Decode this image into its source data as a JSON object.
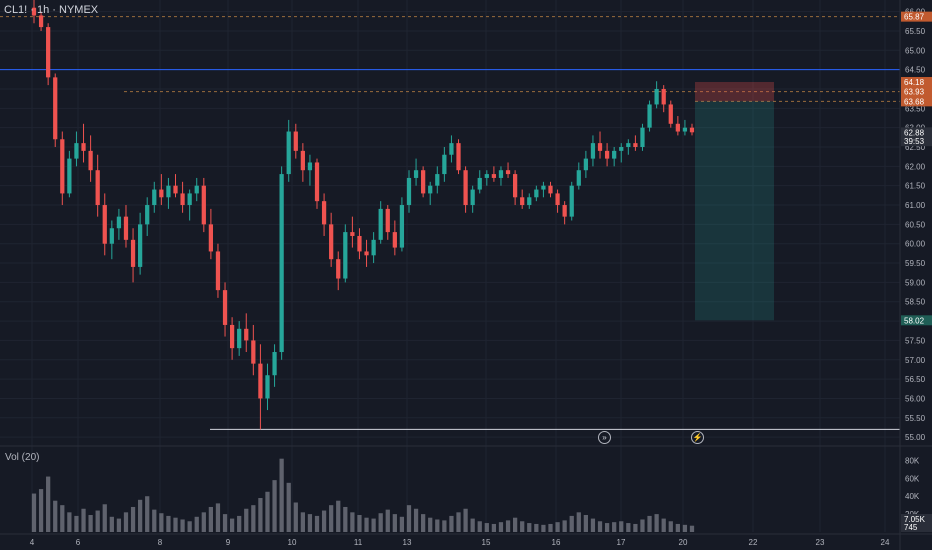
{
  "header": {
    "symbol_line": "CL1! · 1h · NYMEX"
  },
  "volume_panel": {
    "title": "Vol (20)"
  },
  "colors": {
    "background": "#161a25",
    "up": "#26a69a",
    "down": "#ef5350",
    "grid": "#1f2431",
    "text": "#b2b5be",
    "blue_line": "#2962ff"
  },
  "chart_data": {
    "type": "candlestick",
    "title": "",
    "y_ticks": [
      "66.00",
      "65.50",
      "65.00",
      "64.50",
      "64.00",
      "63.50",
      "63.00",
      "62.50",
      "62.00",
      "61.50",
      "61.00",
      "60.50",
      "60.00",
      "59.50",
      "59.00",
      "58.50",
      "58.00",
      "57.50",
      "57.00",
      "56.50",
      "56.00",
      "55.50",
      "55.00"
    ],
    "ylim": [
      54.9,
      66.3
    ],
    "x_ticks": [
      "4",
      "6",
      "8",
      "9",
      "10",
      "11",
      "13",
      "15",
      "16",
      "17",
      "20",
      "22",
      "23",
      "24"
    ],
    "price_labels": [
      {
        "value": 65.87,
        "text": "65.87",
        "color": "#c15a2f"
      },
      {
        "value": 64.18,
        "text": "64.18",
        "color": "#c15a2f"
      },
      {
        "value": 63.93,
        "text": "63.93",
        "color": "#c15a2f"
      },
      {
        "value": 63.68,
        "text": "63.68",
        "color": "#c15a2f"
      },
      {
        "value": 62.88,
        "text": "62.88",
        "color": "#2a2e39"
      },
      {
        "value": 62.65,
        "text": "39:53",
        "color": "#2a2e39"
      },
      {
        "value": 58.02,
        "text": "58.02",
        "color": "#1f5e56"
      }
    ],
    "horizontal_lines": [
      {
        "value": 65.87,
        "style": "dashed",
        "color": "#f0a14c"
      },
      {
        "value": 64.5,
        "style": "solid",
        "color": "#2962ff"
      },
      {
        "value": 63.93,
        "style": "dashed",
        "color": "#f0a14c"
      },
      {
        "value": 63.68,
        "style": "dashed",
        "color": "#f0a14c"
      },
      {
        "value": 55.2,
        "style": "solid",
        "color": "#d1d4dc"
      }
    ],
    "position_tool": {
      "entry": 63.68,
      "stop": 64.18,
      "target": 58.02
    },
    "volume": {
      "y_ticks": [
        "80K",
        "60K",
        "40K",
        "20K"
      ],
      "ylim": [
        0,
        85000
      ],
      "labels": [
        {
          "text": "7.05K",
          "value": 7050
        },
        {
          "text": "745",
          "value": 745
        }
      ]
    },
    "candles": [
      [
        66.1,
        66.35,
        65.7,
        65.9
      ],
      [
        65.9,
        66.0,
        65.5,
        65.6
      ],
      [
        65.6,
        65.7,
        64.1,
        64.3
      ],
      [
        64.3,
        64.4,
        62.5,
        62.7
      ],
      [
        62.7,
        62.9,
        61.0,
        61.3
      ],
      [
        61.3,
        62.4,
        61.2,
        62.2
      ],
      [
        62.2,
        62.9,
        62.0,
        62.6
      ],
      [
        62.6,
        63.1,
        62.1,
        62.4
      ],
      [
        62.4,
        62.8,
        61.6,
        61.9
      ],
      [
        61.9,
        62.3,
        60.7,
        61.0
      ],
      [
        61.0,
        61.3,
        59.7,
        60.0
      ],
      [
        60.0,
        60.6,
        59.6,
        60.4
      ],
      [
        60.4,
        60.9,
        60.1,
        60.7
      ],
      [
        60.7,
        61.0,
        59.9,
        60.1
      ],
      [
        60.1,
        60.4,
        59.0,
        59.4
      ],
      [
        59.4,
        60.8,
        59.2,
        60.5
      ],
      [
        60.5,
        61.2,
        60.2,
        61.0
      ],
      [
        61.0,
        61.6,
        60.8,
        61.4
      ],
      [
        61.4,
        61.8,
        61.0,
        61.2
      ],
      [
        61.2,
        61.7,
        60.9,
        61.5
      ],
      [
        61.5,
        61.8,
        61.2,
        61.3
      ],
      [
        61.3,
        61.6,
        60.8,
        61.0
      ],
      [
        61.0,
        61.4,
        60.6,
        61.3
      ],
      [
        61.3,
        61.7,
        61.1,
        61.5
      ],
      [
        61.5,
        61.7,
        60.3,
        60.5
      ],
      [
        60.5,
        60.9,
        59.6,
        59.8
      ],
      [
        59.8,
        60.0,
        58.6,
        58.8
      ],
      [
        58.8,
        59.0,
        57.6,
        57.9
      ],
      [
        57.9,
        58.1,
        57.0,
        57.3
      ],
      [
        57.3,
        58.0,
        57.1,
        57.8
      ],
      [
        57.8,
        58.2,
        57.2,
        57.5
      ],
      [
        57.5,
        57.9,
        56.6,
        56.9
      ],
      [
        56.9,
        57.4,
        55.2,
        56.0
      ],
      [
        56.0,
        56.9,
        55.7,
        56.6
      ],
      [
        56.6,
        57.4,
        56.3,
        57.2
      ],
      [
        57.2,
        62.0,
        57.0,
        61.8
      ],
      [
        61.8,
        63.2,
        61.6,
        62.9
      ],
      [
        62.9,
        63.1,
        62.2,
        62.4
      ],
      [
        62.4,
        62.6,
        61.6,
        61.9
      ],
      [
        61.9,
        62.3,
        61.5,
        62.1
      ],
      [
        62.1,
        62.2,
        60.9,
        61.1
      ],
      [
        61.1,
        61.3,
        60.2,
        60.5
      ],
      [
        60.5,
        60.8,
        59.4,
        59.6
      ],
      [
        59.6,
        59.8,
        58.8,
        59.1
      ],
      [
        59.1,
        60.5,
        59.0,
        60.3
      ],
      [
        60.3,
        60.7,
        59.9,
        60.2
      ],
      [
        60.2,
        60.4,
        59.6,
        59.8
      ],
      [
        59.8,
        60.1,
        59.4,
        59.7
      ],
      [
        59.7,
        60.3,
        59.5,
        60.1
      ],
      [
        60.1,
        61.1,
        60.0,
        60.9
      ],
      [
        60.9,
        61.0,
        60.1,
        60.3
      ],
      [
        60.3,
        60.6,
        59.7,
        59.9
      ],
      [
        59.9,
        61.2,
        59.8,
        61.0
      ],
      [
        61.0,
        61.9,
        60.8,
        61.7
      ],
      [
        61.7,
        62.2,
        61.5,
        61.9
      ],
      [
        61.9,
        62.0,
        61.2,
        61.3
      ],
      [
        61.3,
        61.6,
        61.0,
        61.5
      ],
      [
        61.5,
        62.0,
        61.3,
        61.8
      ],
      [
        61.8,
        62.5,
        61.6,
        62.3
      ],
      [
        62.3,
        62.8,
        62.1,
        62.6
      ],
      [
        62.6,
        62.7,
        61.8,
        61.9
      ],
      [
        61.9,
        62.0,
        60.8,
        61.0
      ],
      [
        61.0,
        61.5,
        60.8,
        61.4
      ],
      [
        61.4,
        61.9,
        61.3,
        61.7
      ],
      [
        61.7,
        61.9,
        61.5,
        61.8
      ],
      [
        61.8,
        62.0,
        61.6,
        61.7
      ],
      [
        61.7,
        62.0,
        61.5,
        61.9
      ],
      [
        61.9,
        62.1,
        61.7,
        61.8
      ],
      [
        61.8,
        61.9,
        61.0,
        61.2
      ],
      [
        61.2,
        61.4,
        60.9,
        61.0
      ],
      [
        61.0,
        61.3,
        60.9,
        61.2
      ],
      [
        61.2,
        61.5,
        61.1,
        61.4
      ],
      [
        61.4,
        61.6,
        61.2,
        61.5
      ],
      [
        61.5,
        61.6,
        61.2,
        61.3
      ],
      [
        61.3,
        61.4,
        60.8,
        61.0
      ],
      [
        61.0,
        61.1,
        60.5,
        60.7
      ],
      [
        60.7,
        61.6,
        60.6,
        61.5
      ],
      [
        61.5,
        62.1,
        61.4,
        61.9
      ],
      [
        61.9,
        62.4,
        61.7,
        62.2
      ],
      [
        62.2,
        62.8,
        62.0,
        62.6
      ],
      [
        62.6,
        62.9,
        62.2,
        62.4
      ],
      [
        62.4,
        62.6,
        62.0,
        62.2
      ],
      [
        62.2,
        62.5,
        62.0,
        62.4
      ],
      [
        62.4,
        62.6,
        62.1,
        62.5
      ],
      [
        62.5,
        62.7,
        62.3,
        62.6
      ],
      [
        62.6,
        62.8,
        62.4,
        62.5
      ],
      [
        62.5,
        63.1,
        62.4,
        63.0
      ],
      [
        63.0,
        63.7,
        62.9,
        63.6
      ],
      [
        63.6,
        64.2,
        63.5,
        64.0
      ],
      [
        64.0,
        64.1,
        63.4,
        63.6
      ],
      [
        63.6,
        63.7,
        63.0,
        63.1
      ],
      [
        63.1,
        63.3,
        62.8,
        62.9
      ],
      [
        62.9,
        63.2,
        62.8,
        63.0
      ],
      [
        63.0,
        63.1,
        62.8,
        62.88
      ]
    ],
    "volumes": [
      43000,
      48000,
      62000,
      35000,
      30000,
      22000,
      18000,
      26000,
      19000,
      24000,
      31000,
      17000,
      15000,
      22000,
      28000,
      36000,
      40000,
      25000,
      21000,
      18000,
      16000,
      14000,
      12000,
      17000,
      22000,
      28000,
      32000,
      20000,
      15000,
      18000,
      26000,
      30000,
      38000,
      45000,
      58000,
      82000,
      55000,
      33000,
      22000,
      20000,
      18000,
      24000,
      30000,
      35000,
      28000,
      22000,
      19000,
      16000,
      15000,
      21000,
      25000,
      20000,
      17000,
      30000,
      26000,
      20000,
      16000,
      14000,
      13000,
      18000,
      22000,
      26000,
      15000,
      12000,
      10000,
      9000,
      11000,
      13000,
      16000,
      12000,
      10000,
      9000,
      8000,
      9000,
      11000,
      13000,
      18000,
      22000,
      19000,
      15000,
      12000,
      10000,
      11000,
      12000,
      10000,
      9000,
      14000,
      18000,
      20000,
      15000,
      12000,
      9000,
      8000,
      7050
    ]
  }
}
